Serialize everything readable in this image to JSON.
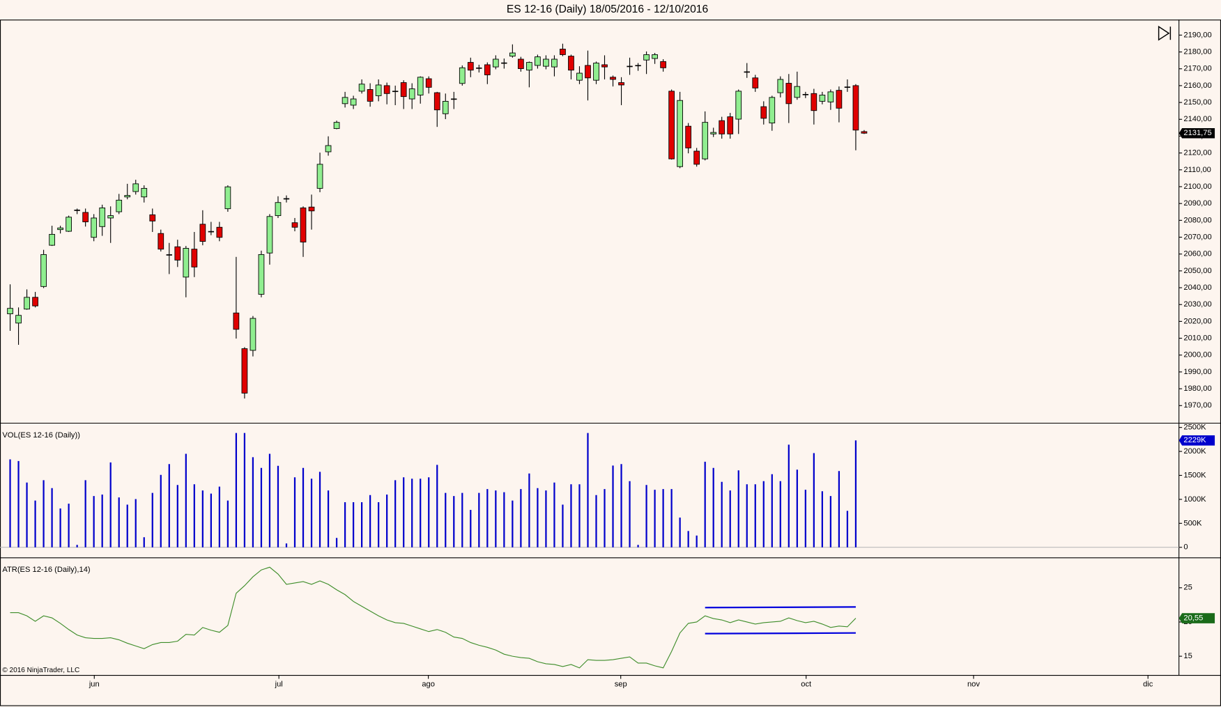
{
  "title": "ES 12-16 (Daily)  18/05/2016 - 12/10/2016",
  "copyright": "© 2016 NinjaTrader, LLC",
  "x_axis": {
    "xlim": [
      -1.21,
      139.6
    ],
    "xticks": [
      {
        "value": 10.05,
        "label": "jun"
      },
      {
        "value": 32.1,
        "label": "jul"
      },
      {
        "value": 49.95,
        "label": "ago"
      },
      {
        "value": 72.93,
        "label": "sep"
      },
      {
        "value": 95.07,
        "label": "oct"
      },
      {
        "value": 115.07,
        "label": "nov"
      },
      {
        "value": 135.9,
        "label": "dic"
      }
    ]
  },
  "chart_data": [
    {
      "type": "candlestick",
      "up_color": "#90ee90",
      "down_color": "#e00000",
      "last_label_color": "#000000",
      "open": [
        2024.5,
        2019.0,
        2027.3,
        2034.3,
        2040.7,
        2065.2,
        2074.5,
        2073.5,
        2086.2,
        2084.7,
        2069.9,
        2076.3,
        2081.4,
        2085.1,
        2093.9,
        2097.1,
        2093.9,
        2083.3,
        2072.2,
        2059.7,
        2064.3,
        2046.3,
        2062.9,
        2077.7,
        2073.5,
        2075.9,
        2086.9,
        2025.0,
        2003.8,
        2002.8,
        2036.1,
        2060.6,
        2082.8,
        2092.9,
        2078.6,
        2087.4,
        2087.9,
        2099.0,
        2120.7,
        2134.5,
        2149.3,
        2148.4,
        2156.7,
        2157.7,
        2154.0,
        2160.0,
        2156.8,
        2161.8,
        2152.1,
        2154.4,
        2164.1,
        2155.8,
        2143.3,
        2152.1,
        2161.3,
        2173.8,
        2170.6,
        2172.4,
        2171.1,
        2173.4,
        2177.5,
        2175.7,
        2169.2,
        2172.0,
        2171.5,
        2171.1,
        2181.7,
        2177.5,
        2163.2,
        2172.0,
        2163.2,
        2172.4,
        2165.0,
        2161.8,
        2171.5,
        2172.0,
        2175.2,
        2176.1,
        2174.3,
        2156.7,
        2111.9,
        2135.9,
        2121.1,
        2116.5,
        2131.3,
        2139.2,
        2141.5,
        2140.1,
        2168.3,
        2164.6,
        2147.5,
        2137.8,
        2155.8,
        2161.4,
        2153.0,
        2154.9,
        2155.3,
        2150.7,
        2150.3,
        2157.2,
        2159.3,
        2160.0,
        2132.7
      ],
      "high": [
        2042,
        2028.3,
        2039.0,
        2037.5,
        2062.5,
        2076.8,
        2076.8,
        2082.8,
        2087.0,
        2087.0,
        2083.7,
        2089.3,
        2088.3,
        2095.7,
        2101.7,
        2104.1,
        2100.8,
        2087.0,
        2074.5,
        2066.6,
        2068.5,
        2064.8,
        2073.1,
        2086.0,
        2079.1,
        2079.1,
        2100.8,
        2058.3,
        2004.7,
        2023.2,
        2062.0,
        2083.7,
        2094.3,
        2094.8,
        2081.4,
        2088.3,
        2095.3,
        2120.2,
        2129.9,
        2139.2,
        2156.3,
        2154.0,
        2163.7,
        2161.4,
        2163.7,
        2161.8,
        2160.0,
        2163.2,
        2161.4,
        2165.5,
        2165.5,
        2156.3,
        2155.3,
        2156.3,
        2172.0,
        2176.6,
        2172.4,
        2173.8,
        2178.0,
        2176.1,
        2184.5,
        2177.1,
        2174.3,
        2178.4,
        2178.0,
        2178.0,
        2184.9,
        2178.4,
        2171.5,
        2180.8,
        2174.3,
        2178.0,
        2166.0,
        2165.0,
        2176.6,
        2173.4,
        2180.3,
        2179.4,
        2175.7,
        2157.7,
        2156.3,
        2137.8,
        2123.0,
        2144.7,
        2135.0,
        2141.5,
        2143.8,
        2157.7,
        2173.4,
        2166.4,
        2150.7,
        2154.0,
        2165.5,
        2166.9,
        2168.3,
        2156.3,
        2158.1,
        2156.3,
        2157.7,
        2159.5,
        2163.7,
        2160.9,
        2133.6
      ],
      "low": [
        2014.4,
        2006.1,
        2026.9,
        2028.3,
        2039.8,
        2064.8,
        2072.2,
        2073.1,
        2083.7,
        2076.3,
        2067.6,
        2070.8,
        2066.6,
        2083.7,
        2092.5,
        2095.3,
        2090.6,
        2073.1,
        2061.5,
        2048.1,
        2052.3,
        2034.3,
        2046.3,
        2065.2,
        2071.2,
        2067.6,
        2085.1,
        2009.8,
        1974.2,
        1999.2,
        2034.3,
        2053.7,
        2081.4,
        2090.6,
        2073.5,
        2058.3,
        2074.5,
        2096.7,
        2118.4,
        2134.1,
        2147.0,
        2146.1,
        2155.3,
        2147.5,
        2150.7,
        2148.9,
        2148.4,
        2146.1,
        2146.1,
        2149.3,
        2155.3,
        2135.5,
        2140.1,
        2146.1,
        2160.0,
        2165.0,
        2167.8,
        2160.9,
        2169.7,
        2170.1,
        2176.6,
        2168.3,
        2159.0,
        2170.1,
        2169.7,
        2165.5,
        2177.5,
        2163.7,
        2160.9,
        2151.2,
        2160.9,
        2163.7,
        2159.5,
        2148.4,
        2166.4,
        2168.8,
        2166.9,
        2172.9,
        2168.3,
        2116.1,
        2111.0,
        2119.8,
        2111.9,
        2115.6,
        2129.5,
        2128.5,
        2128.5,
        2131.3,
        2164.6,
        2156.3,
        2136.9,
        2133.2,
        2153.0,
        2137.8,
        2151.6,
        2152.6,
        2136.9,
        2148.9,
        2145.6,
        2138.2,
        2156.3,
        2121.6,
        2131.3
      ],
      "close": [
        2027.75,
        2023.6,
        2034.3,
        2029.2,
        2059.7,
        2071.7,
        2075.5,
        2081.9,
        2086.0,
        2079.1,
        2081.4,
        2087.4,
        2082.8,
        2092.0,
        2094.8,
        2101.7,
        2099.0,
        2079.6,
        2062.9,
        2059.5,
        2056.4,
        2063.4,
        2052.3,
        2067.5,
        2073.3,
        2069.9,
        2099.9,
        2015.3,
        1977.4,
        2021.8,
        2059.7,
        2082.3,
        2090.6,
        2093.0,
        2075.9,
        2067.1,
        2085.6,
        2113.3,
        2124.4,
        2138.2,
        2153.0,
        2152.1,
        2160.9,
        2150.7,
        2160.4,
        2155.3,
        2156.7,
        2153.5,
        2158.1,
        2165.0,
        2159.0,
        2145.6,
        2150.7,
        2152.2,
        2170.6,
        2169.2,
        2170.5,
        2166.4,
        2175.7,
        2173.6,
        2179.4,
        2170.1,
        2173.8,
        2177.1,
        2175.7,
        2175.7,
        2178.4,
        2169.2,
        2167.4,
        2164.6,
        2173.4,
        2171.1,
        2163.7,
        2160.4,
        2171.6,
        2172.1,
        2178.4,
        2178.4,
        2170.6,
        2116.5,
        2151.2,
        2123.0,
        2113.3,
        2138.2,
        2132.2,
        2131.3,
        2131.3,
        2156.7,
        2168.0,
        2158.6,
        2140.6,
        2153.0,
        2163.7,
        2149.3,
        2159.5,
        2154.8,
        2145.2,
        2154.4,
        2156.3,
        2146.6,
        2159.0,
        2133.6,
        2131.75
      ],
      "ylim": [
        1959.8,
        2199.2
      ],
      "yticks": [
        {
          "value": 1970,
          "label": "1970,00"
        },
        {
          "value": 1980,
          "label": "1980,00"
        },
        {
          "value": 1990,
          "label": "1990,00"
        },
        {
          "value": 2000,
          "label": "2000,00"
        },
        {
          "value": 2010,
          "label": "2010,00"
        },
        {
          "value": 2020,
          "label": "2020,00"
        },
        {
          "value": 2030,
          "label": "2030,00"
        },
        {
          "value": 2040,
          "label": "2040,00"
        },
        {
          "value": 2050,
          "label": "2050,00"
        },
        {
          "value": 2060,
          "label": "2060,00"
        },
        {
          "value": 2070,
          "label": "2070,00"
        },
        {
          "value": 2080,
          "label": "2080,00"
        },
        {
          "value": 2090,
          "label": "2090,00"
        },
        {
          "value": 2100,
          "label": "2100,00"
        },
        {
          "value": 2110,
          "label": "2110,00"
        },
        {
          "value": 2120,
          "label": "2120,00"
        },
        {
          "value": 2130,
          "label": "2130,00"
        },
        {
          "value": 2140,
          "label": "2140,00"
        },
        {
          "value": 2150,
          "label": "2150,00"
        },
        {
          "value": 2160,
          "label": "2160,00"
        },
        {
          "value": 2170,
          "label": "2170,00"
        },
        {
          "value": 2180,
          "label": "2180,00"
        },
        {
          "value": 2190,
          "label": "2190,00"
        }
      ],
      "last_value": {
        "value": 2131.75,
        "label": "2131,75"
      }
    },
    {
      "type": "bar",
      "title": "VOL(ES 12-16 (Daily))",
      "color": "#0000cc",
      "last_label_color": "#0000cc",
      "values": [
        1834000,
        1800000,
        1350000,
        975000,
        1400000,
        1235000,
        810000,
        910000,
        50000,
        1400000,
        1070000,
        1100000,
        1770000,
        1040000,
        890000,
        1005000,
        210000,
        1135000,
        1510000,
        1735000,
        1300000,
        1950000,
        1315000,
        1185000,
        1120000,
        1265000,
        975000,
        2385000,
        2385000,
        1880000,
        1655000,
        1950000,
        1700000,
        80000,
        1460000,
        1655000,
        1430000,
        1575000,
        1185000,
        195000,
        940000,
        940000,
        940000,
        1090000,
        940000,
        1100000,
        1400000,
        1460000,
        1430000,
        1430000,
        1460000,
        1720000,
        1135000,
        1070000,
        1135000,
        780000,
        1135000,
        1215000,
        1185000,
        1150000,
        975000,
        1215000,
        1540000,
        1235000,
        1185000,
        1350000,
        890000,
        1315000,
        1315000,
        2385000,
        1090000,
        1215000,
        1705000,
        1735000,
        1380000,
        50000,
        1300000,
        1200000,
        1215000,
        1215000,
        620000,
        340000,
        245000,
        1785000,
        1655000,
        1365000,
        1185000,
        1605000,
        1315000,
        1315000,
        1380000,
        1525000,
        1380000,
        2140000,
        1620000,
        1200000,
        1965000,
        1170000,
        1070000,
        1590000,
        760000,
        2229000,
        null
      ],
      "ylim": [
        -211000,
        2597400
      ],
      "yticks": [
        0,
        {
          "value": 500000,
          "label": "500K"
        },
        {
          "value": 1000000,
          "label": "1000K"
        },
        {
          "value": 1500000,
          "label": "1500K"
        },
        {
          "value": 2000000,
          "label": "2000K"
        },
        {
          "value": 2500000,
          "label": "2500K"
        }
      ],
      "last_value": {
        "value": 2229000,
        "label": "2229K"
      }
    },
    {
      "type": "line",
      "title": "ATR(ES 12-16 (Daily),14)",
      "color": "#3c8c28",
      "last_label_color": "#1a6b1a",
      "values": [
        21.36,
        21.36,
        20.9,
        20.1,
        20.9,
        20.6,
        19.8,
        18.9,
        18.1,
        17.7,
        17.6,
        17.6,
        17.7,
        17.4,
        16.9,
        16.5,
        16.1,
        16.7,
        17.0,
        17.0,
        17.2,
        18.2,
        18.1,
        19.2,
        18.8,
        18.5,
        19.5,
        24.2,
        25.3,
        26.6,
        27.6,
        28.0,
        27.0,
        25.5,
        25.7,
        25.9,
        25.5,
        26.0,
        25.5,
        24.7,
        24.0,
        23.0,
        22.3,
        21.6,
        20.9,
        20.3,
        19.9,
        19.8,
        19.4,
        19.0,
        18.6,
        18.9,
        18.5,
        17.8,
        17.6,
        17.0,
        16.6,
        16.3,
        15.9,
        15.3,
        15.0,
        14.8,
        14.7,
        14.2,
        13.9,
        13.8,
        13.5,
        13.8,
        13.3,
        14.5,
        14.4,
        14.4,
        14.5,
        14.7,
        14.9,
        14.0,
        14.0,
        13.6,
        13.3,
        15.7,
        18.4,
        19.8,
        20.0,
        20.9,
        20.5,
        20.3,
        19.9,
        20.3,
        20.0,
        19.7,
        19.9,
        20.0,
        20.1,
        20.6,
        20.2,
        19.9,
        20.1,
        19.7,
        19.2,
        19.4,
        19.3,
        20.55,
        null
      ],
      "ylim": [
        12.27,
        29.43
      ],
      "yticks": [
        15,
        20,
        25
      ],
      "last_value": {
        "value": 20.55,
        "label": "20,55"
      },
      "lines": [
        {
          "color": "#0000dd",
          "x": [
            83,
            101
          ],
          "values": [
            22.1,
            22.2
          ]
        },
        {
          "color": "#0000dd",
          "x": [
            83,
            101
          ],
          "values": [
            18.3,
            18.4
          ]
        }
      ]
    }
  ]
}
